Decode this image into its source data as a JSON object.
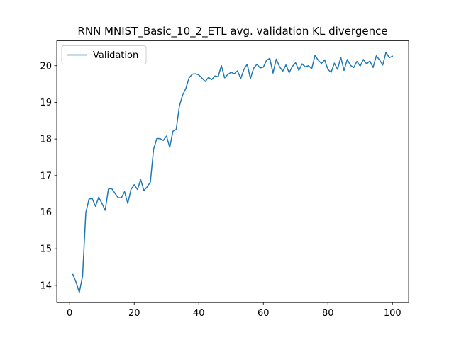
{
  "chart_data": {
    "type": "line",
    "title": "RNN MNIST_Basic_10_2_ETL avg. validation KL divergence",
    "xlabel": "",
    "ylabel": "",
    "xlim": [
      -4,
      105
    ],
    "ylim": [
      13.53,
      20.68
    ],
    "x_ticks": [
      0,
      20,
      40,
      60,
      80,
      100
    ],
    "y_ticks": [
      14,
      15,
      16,
      17,
      18,
      19,
      20
    ],
    "grid": false,
    "legend": {
      "position": "top-left"
    },
    "series": [
      {
        "name": "Validation",
        "color": "#1f77b4",
        "x": [
          1,
          2,
          3,
          4,
          5,
          6,
          7,
          8,
          9,
          10,
          11,
          12,
          13,
          14,
          15,
          16,
          17,
          18,
          19,
          20,
          21,
          22,
          23,
          24,
          25,
          26,
          27,
          28,
          29,
          30,
          31,
          32,
          33,
          34,
          35,
          36,
          37,
          38,
          39,
          40,
          41,
          42,
          43,
          44,
          45,
          46,
          47,
          48,
          49,
          50,
          51,
          52,
          53,
          54,
          55,
          56,
          57,
          58,
          59,
          60,
          61,
          62,
          63,
          64,
          65,
          66,
          67,
          68,
          69,
          70,
          71,
          72,
          73,
          74,
          75,
          76,
          77,
          78,
          79,
          80,
          81,
          82,
          83,
          84,
          85,
          86,
          87,
          88,
          89,
          90,
          91,
          92,
          93,
          94,
          95,
          96,
          97,
          98,
          99,
          100
        ],
        "y": [
          14.3,
          14.08,
          13.81,
          14.25,
          15.98,
          16.36,
          16.37,
          16.16,
          16.41,
          16.24,
          16.05,
          16.63,
          16.65,
          16.52,
          16.4,
          16.39,
          16.56,
          16.24,
          16.62,
          16.75,
          16.62,
          16.89,
          16.59,
          16.69,
          16.82,
          17.72,
          18.01,
          18.01,
          17.96,
          18.08,
          17.77,
          18.21,
          18.26,
          18.9,
          19.2,
          19.38,
          19.67,
          19.77,
          19.78,
          19.75,
          19.66,
          19.57,
          19.68,
          19.62,
          19.72,
          19.7,
          20.0,
          19.67,
          19.76,
          19.82,
          19.78,
          19.86,
          19.65,
          19.9,
          20.04,
          19.65,
          19.93,
          20.04,
          19.94,
          19.96,
          20.15,
          20.2,
          19.8,
          20.18,
          19.98,
          19.85,
          20.02,
          19.81,
          19.98,
          20.08,
          19.87,
          20.05,
          19.97,
          20.0,
          19.92,
          20.28,
          20.15,
          20.06,
          20.16,
          19.9,
          19.82,
          20.07,
          19.9,
          20.23,
          19.87,
          20.17,
          20.01,
          19.95,
          20.12,
          19.99,
          20.17,
          20.05,
          20.13,
          19.95,
          20.27,
          20.16,
          20.02,
          20.37,
          20.22,
          20.26
        ]
      }
    ]
  }
}
